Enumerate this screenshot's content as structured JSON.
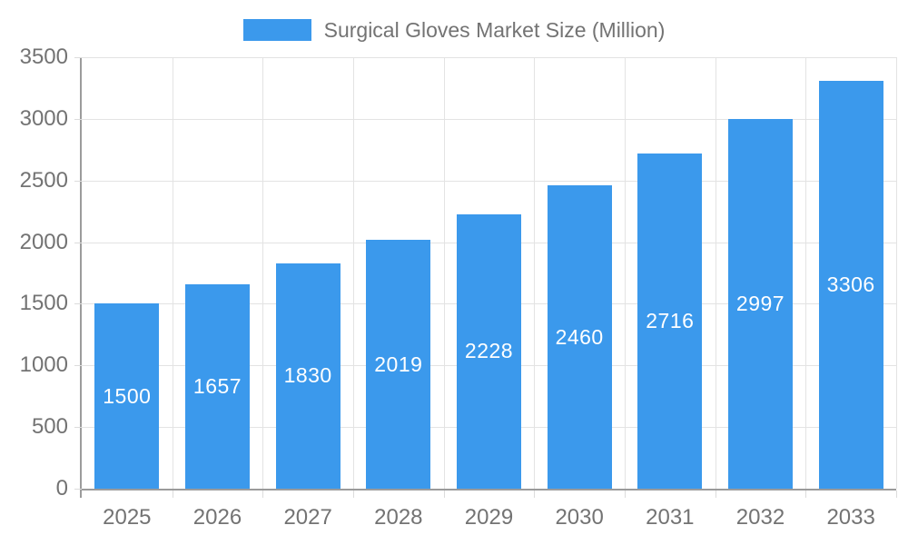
{
  "legend": {
    "label": "Surgical Gloves Market Size (Million)"
  },
  "colors": {
    "bar": "#3B99EC",
    "grid": "#E3E3E3",
    "tick": "#DCDCDC",
    "axis": "#9B9B9B",
    "axis_text": "#737373",
    "legend_text": "#737373",
    "value_label": "#FFFFFF",
    "background": "#FFFFFF"
  },
  "chart_data": {
    "type": "bar",
    "title": "Surgical Gloves Market Size (Million)",
    "series_name": "Surgical Gloves Market Size (Million)",
    "categories": [
      "2025",
      "2026",
      "2027",
      "2028",
      "2029",
      "2030",
      "2031",
      "2032",
      "2033"
    ],
    "values": [
      1500,
      1657,
      1830,
      2019,
      2228,
      2460,
      2716,
      2997,
      3306
    ],
    "bar_labels": [
      "1500",
      "1657",
      "1830",
      "2019",
      "2228",
      "2460",
      "2716",
      "2997",
      "3306"
    ],
    "xlabel": "",
    "ylabel": "",
    "ylim": [
      0,
      3500
    ],
    "yticks": [
      0,
      500,
      1000,
      1500,
      2000,
      2500,
      3000,
      3500
    ],
    "grid": true,
    "legend_position": "top-center",
    "value_labels_position": "center-inside"
  }
}
